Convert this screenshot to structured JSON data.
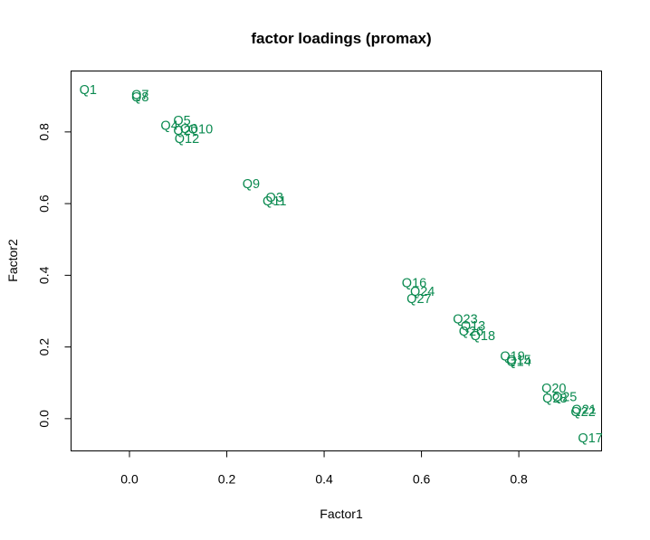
{
  "chart_data": {
    "type": "scatter",
    "title": "factor loadings (promax)",
    "xlabel": "Factor1",
    "ylabel": "Factor2",
    "xlim": [
      -0.12,
      0.97
    ],
    "ylim": [
      -0.09,
      0.97
    ],
    "xticks": [
      0.0,
      0.2,
      0.4,
      0.6,
      0.8
    ],
    "xtick_labels": [
      "0.0",
      "0.2",
      "0.4",
      "0.6",
      "0.8"
    ],
    "yticks": [
      0.0,
      0.2,
      0.4,
      0.6,
      0.8
    ],
    "ytick_labels": [
      "0.0",
      "0.2",
      "0.4",
      "0.6",
      "0.8"
    ],
    "grid": false,
    "marker": "text-label",
    "point_color": "#0b8a50",
    "points": [
      {
        "label": "Q1",
        "x": -0.085,
        "y": 0.918
      },
      {
        "label": "Q7",
        "x": 0.022,
        "y": 0.905
      },
      {
        "label": "Q8",
        "x": 0.022,
        "y": 0.898
      },
      {
        "label": "Q5",
        "x": 0.108,
        "y": 0.832
      },
      {
        "label": "Q4",
        "x": 0.082,
        "y": 0.818
      },
      {
        "label": "Q10",
        "x": 0.146,
        "y": 0.808
      },
      {
        "label": "Q6",
        "x": 0.122,
        "y": 0.81
      },
      {
        "label": "Q2",
        "x": 0.108,
        "y": 0.805
      },
      {
        "label": "Q12",
        "x": 0.118,
        "y": 0.782
      },
      {
        "label": "Q9",
        "x": 0.25,
        "y": 0.656
      },
      {
        "label": "Q3",
        "x": 0.298,
        "y": 0.618
      },
      {
        "label": "Q11",
        "x": 0.298,
        "y": 0.608
      },
      {
        "label": "Q16",
        "x": 0.585,
        "y": 0.38
      },
      {
        "label": "Q24",
        "x": 0.602,
        "y": 0.355
      },
      {
        "label": "Q27",
        "x": 0.595,
        "y": 0.335
      },
      {
        "label": "Q23",
        "x": 0.69,
        "y": 0.278
      },
      {
        "label": "Q13",
        "x": 0.706,
        "y": 0.26
      },
      {
        "label": "Q26",
        "x": 0.702,
        "y": 0.245
      },
      {
        "label": "Q18",
        "x": 0.726,
        "y": 0.232
      },
      {
        "label": "Q19",
        "x": 0.787,
        "y": 0.175
      },
      {
        "label": "Q15",
        "x": 0.8,
        "y": 0.165
      },
      {
        "label": "Q14",
        "x": 0.8,
        "y": 0.16
      },
      {
        "label": "Q20",
        "x": 0.872,
        "y": 0.085
      },
      {
        "label": "Q25",
        "x": 0.894,
        "y": 0.062
      },
      {
        "label": "Q28",
        "x": 0.874,
        "y": 0.058
      },
      {
        "label": "Q21",
        "x": 0.934,
        "y": 0.026
      },
      {
        "label": "Q22",
        "x": 0.932,
        "y": 0.02
      },
      {
        "label": "Q17",
        "x": 0.947,
        "y": -0.054
      }
    ]
  }
}
